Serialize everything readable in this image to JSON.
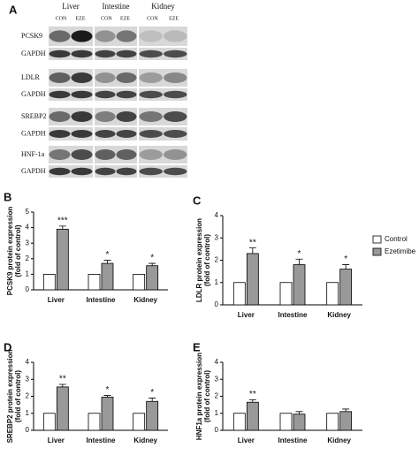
{
  "blot": {
    "panel": "A",
    "tissues": [
      "Liver",
      "Intestine",
      "Kidney"
    ],
    "conditions": [
      "CON",
      "EZE",
      "CON",
      "EZE",
      "CON",
      "EZE"
    ],
    "rows": [
      "PCSK9",
      "GAPDH",
      "LDLR",
      "GAPDH",
      "SREBP2",
      "GAPDH",
      "HNF-1a",
      "GAPDH"
    ]
  },
  "chart_data": [
    {
      "type": "bar",
      "panel": "B",
      "ylabel": [
        "PCSK9 protein expression",
        "(fold of control)"
      ],
      "categories": [
        "Liver",
        "Intestine",
        "Kidney"
      ],
      "series": [
        {
          "color": "#ffffff",
          "values": [
            1,
            1,
            1
          ]
        },
        {
          "color": "#999999",
          "values": [
            3.9,
            1.7,
            1.55
          ],
          "errors": [
            0.2,
            0.2,
            0.15
          ]
        }
      ],
      "annotations": [
        "***",
        "*",
        "*"
      ],
      "ylim": [
        0,
        5
      ],
      "yticks": [
        0,
        1,
        2,
        3,
        4,
        5
      ]
    },
    {
      "type": "bar",
      "panel": "C",
      "ylabel": [
        "LDLR protein expression",
        "(fold of control)"
      ],
      "categories": [
        "Liver",
        "Intestine",
        "Kidney"
      ],
      "series": [
        {
          "name": "Control",
          "color": "#ffffff",
          "values": [
            1,
            1,
            1
          ]
        },
        {
          "name": "Ezetimibe",
          "color": "#999999",
          "values": [
            2.3,
            1.8,
            1.6
          ],
          "errors": [
            0.25,
            0.25,
            0.2
          ]
        }
      ],
      "annotations": [
        "**",
        "*",
        "*"
      ],
      "ylim": [
        0,
        4
      ],
      "yticks": [
        0,
        1,
        2,
        3,
        4
      ],
      "legend": "right"
    },
    {
      "type": "bar",
      "panel": "D",
      "ylabel": [
        "SREBP2 protein expression",
        "(fold of control)"
      ],
      "categories": [
        "Liver",
        "Intestine",
        "Kidney"
      ],
      "series": [
        {
          "color": "#ffffff",
          "values": [
            1,
            1,
            1
          ]
        },
        {
          "color": "#999999",
          "values": [
            2.55,
            1.95,
            1.7
          ],
          "errors": [
            0.15,
            0.1,
            0.2
          ]
        }
      ],
      "annotations": [
        "**",
        "*",
        "*"
      ],
      "ylim": [
        0,
        4
      ],
      "yticks": [
        0,
        1,
        2,
        3,
        4
      ]
    },
    {
      "type": "bar",
      "panel": "E",
      "ylabel": [
        "HNF1a protein expression",
        "(fold of control)"
      ],
      "categories": [
        "Liver",
        "Intestine",
        "Kidney"
      ],
      "series": [
        {
          "color": "#ffffff",
          "values": [
            1,
            1,
            1
          ]
        },
        {
          "color": "#999999",
          "values": [
            1.65,
            0.95,
            1.1
          ],
          "errors": [
            0.15,
            0.15,
            0.15
          ]
        }
      ],
      "annotations": [
        "**",
        null,
        null
      ],
      "ylim": [
        0,
        4
      ],
      "yticks": [
        0,
        1,
        2,
        3,
        4
      ]
    }
  ]
}
